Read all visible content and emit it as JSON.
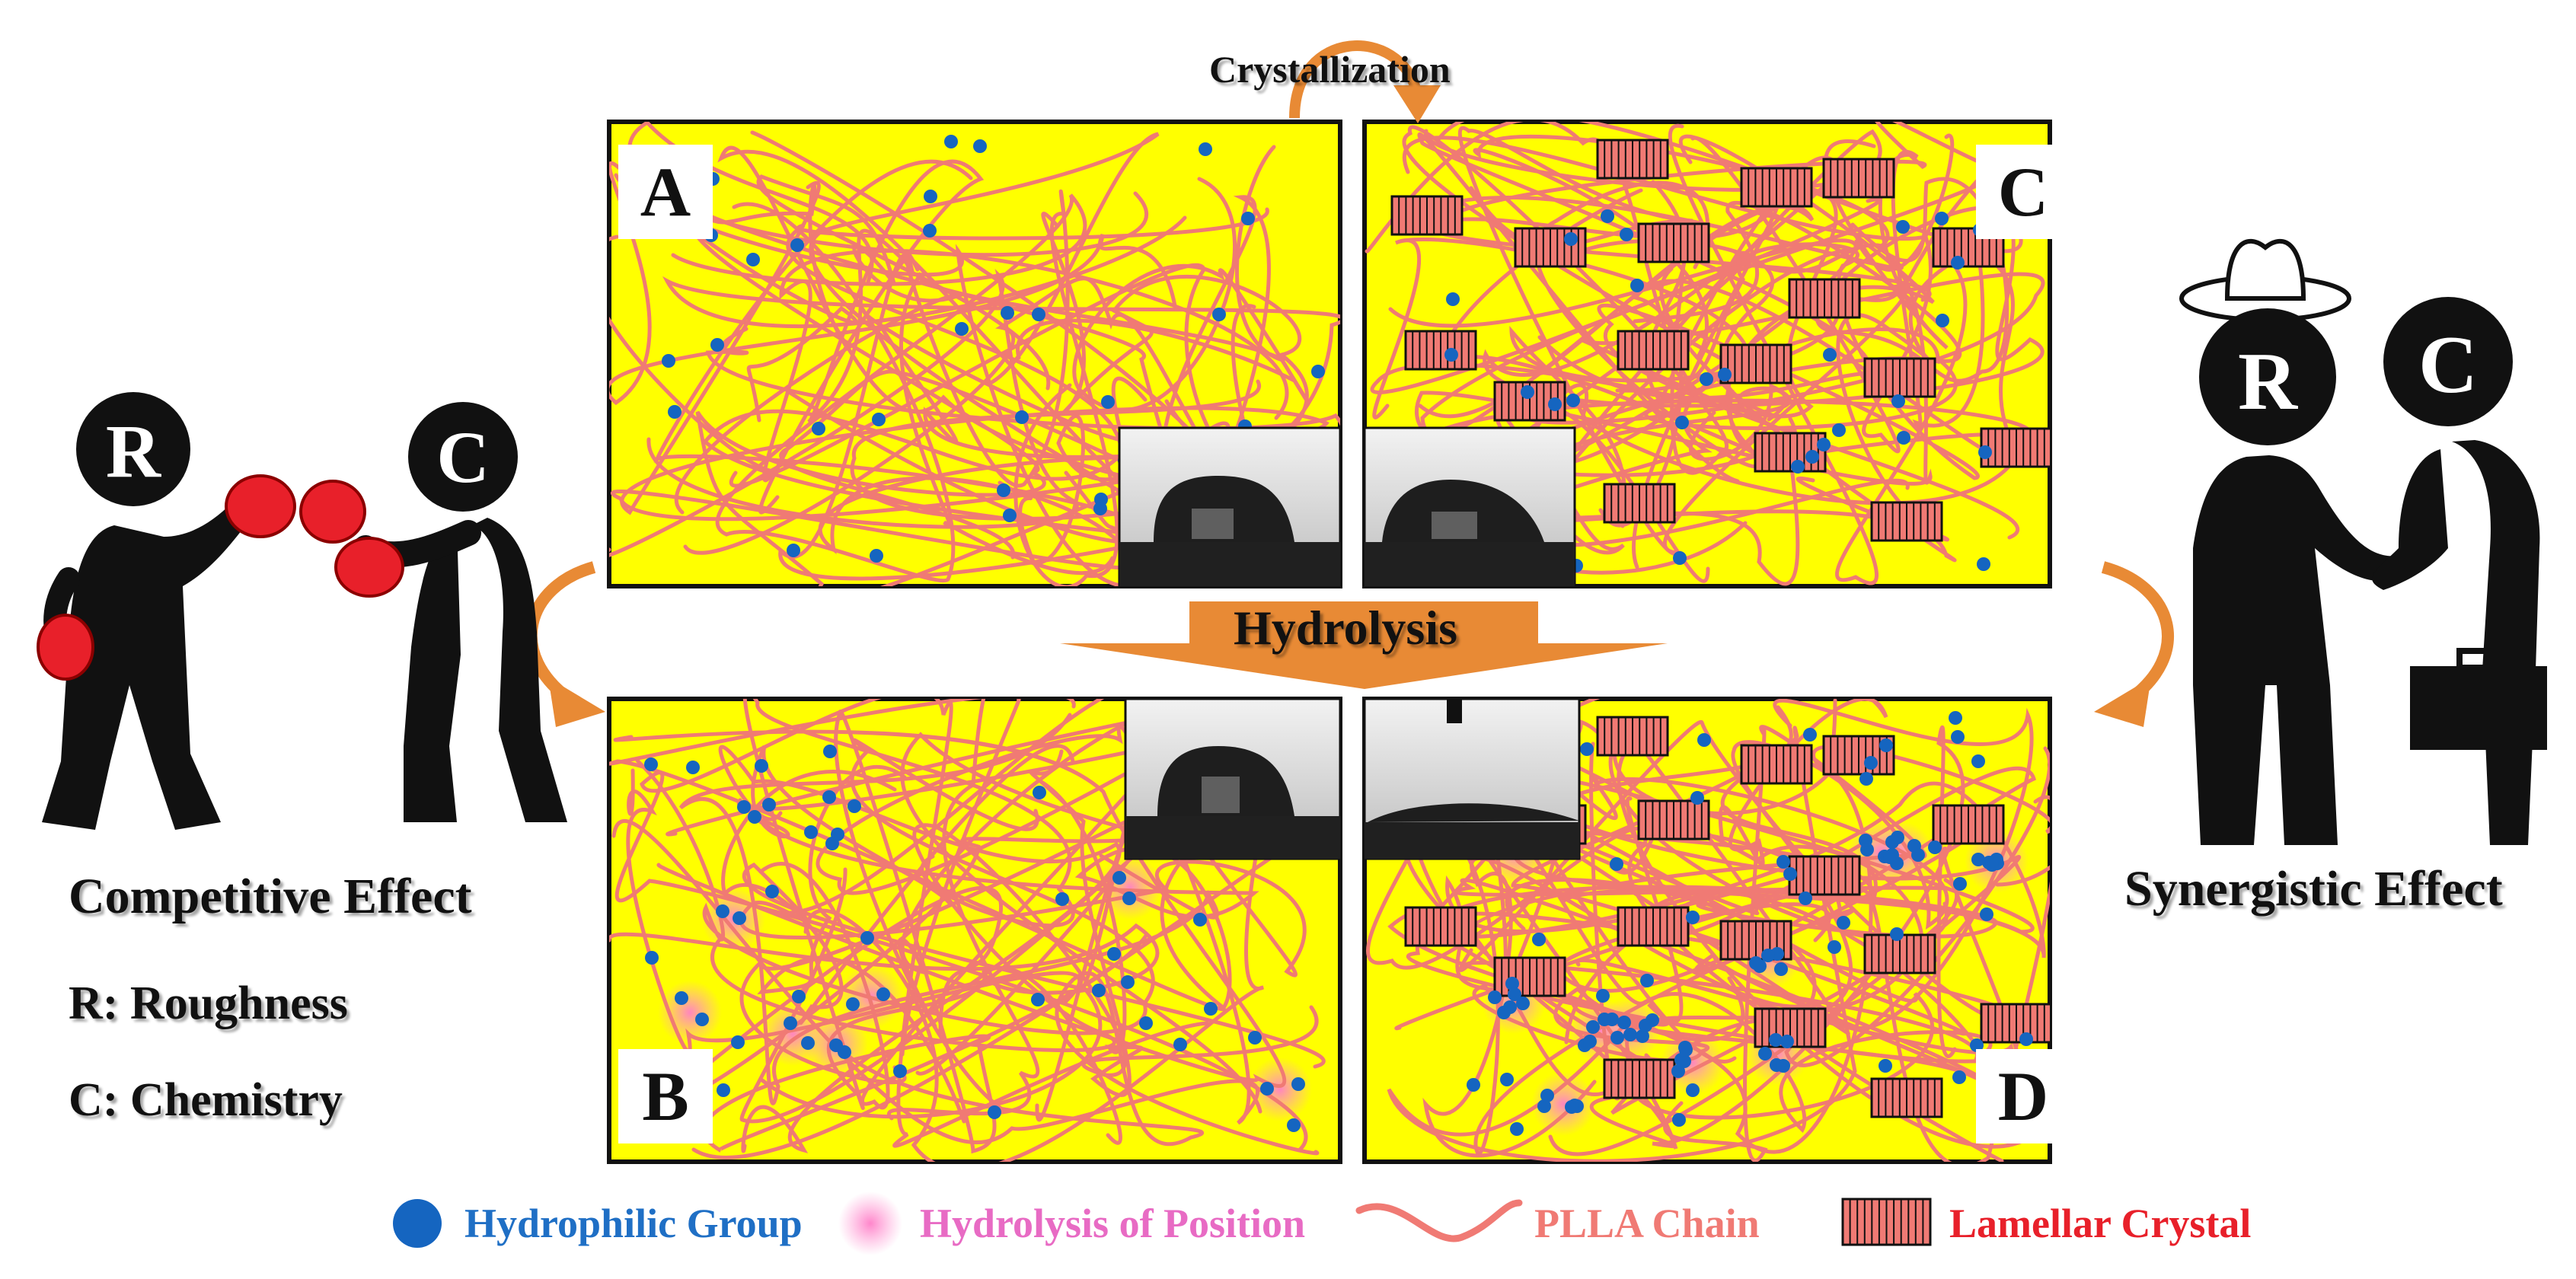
{
  "top_arrow_label": "Crystallization",
  "middle_arrow_label": "Hydrolysis",
  "panels": [
    {
      "id": "A",
      "letter": "A"
    },
    {
      "id": "B",
      "letter": "B"
    },
    {
      "id": "C",
      "letter": "C"
    },
    {
      "id": "D",
      "letter": "D"
    }
  ],
  "left_side": {
    "figure_left_letter": "R",
    "figure_right_letter": "C",
    "caption": "Competitive Effect",
    "key_r": "R: Roughness",
    "key_c": "C: Chemistry"
  },
  "right_side": {
    "figure_left_letter": "R",
    "figure_right_letter": "C",
    "caption": "Synergistic Effect"
  },
  "legend": [
    {
      "label": "Hydrophilic Group",
      "color": "#1f6fc5",
      "icon": "blue-dot-icon"
    },
    {
      "label": "Hydrolysis of Position",
      "color": "#e86bc4",
      "icon": "pink-glow-icon"
    },
    {
      "label": "PLLA Chain",
      "color": "#f07a74",
      "icon": "wavy-chain-icon"
    },
    {
      "label": "Lamellar Crystal",
      "color": "#e8202a",
      "icon": "lamellar-crystal-icon"
    }
  ],
  "colors": {
    "panel_fill": "#ffff00",
    "chain": "#f07a74",
    "dot": "#1565c0",
    "crystal": "#f07a74",
    "arrow": "#e88a35",
    "glove": "#e8202a"
  }
}
